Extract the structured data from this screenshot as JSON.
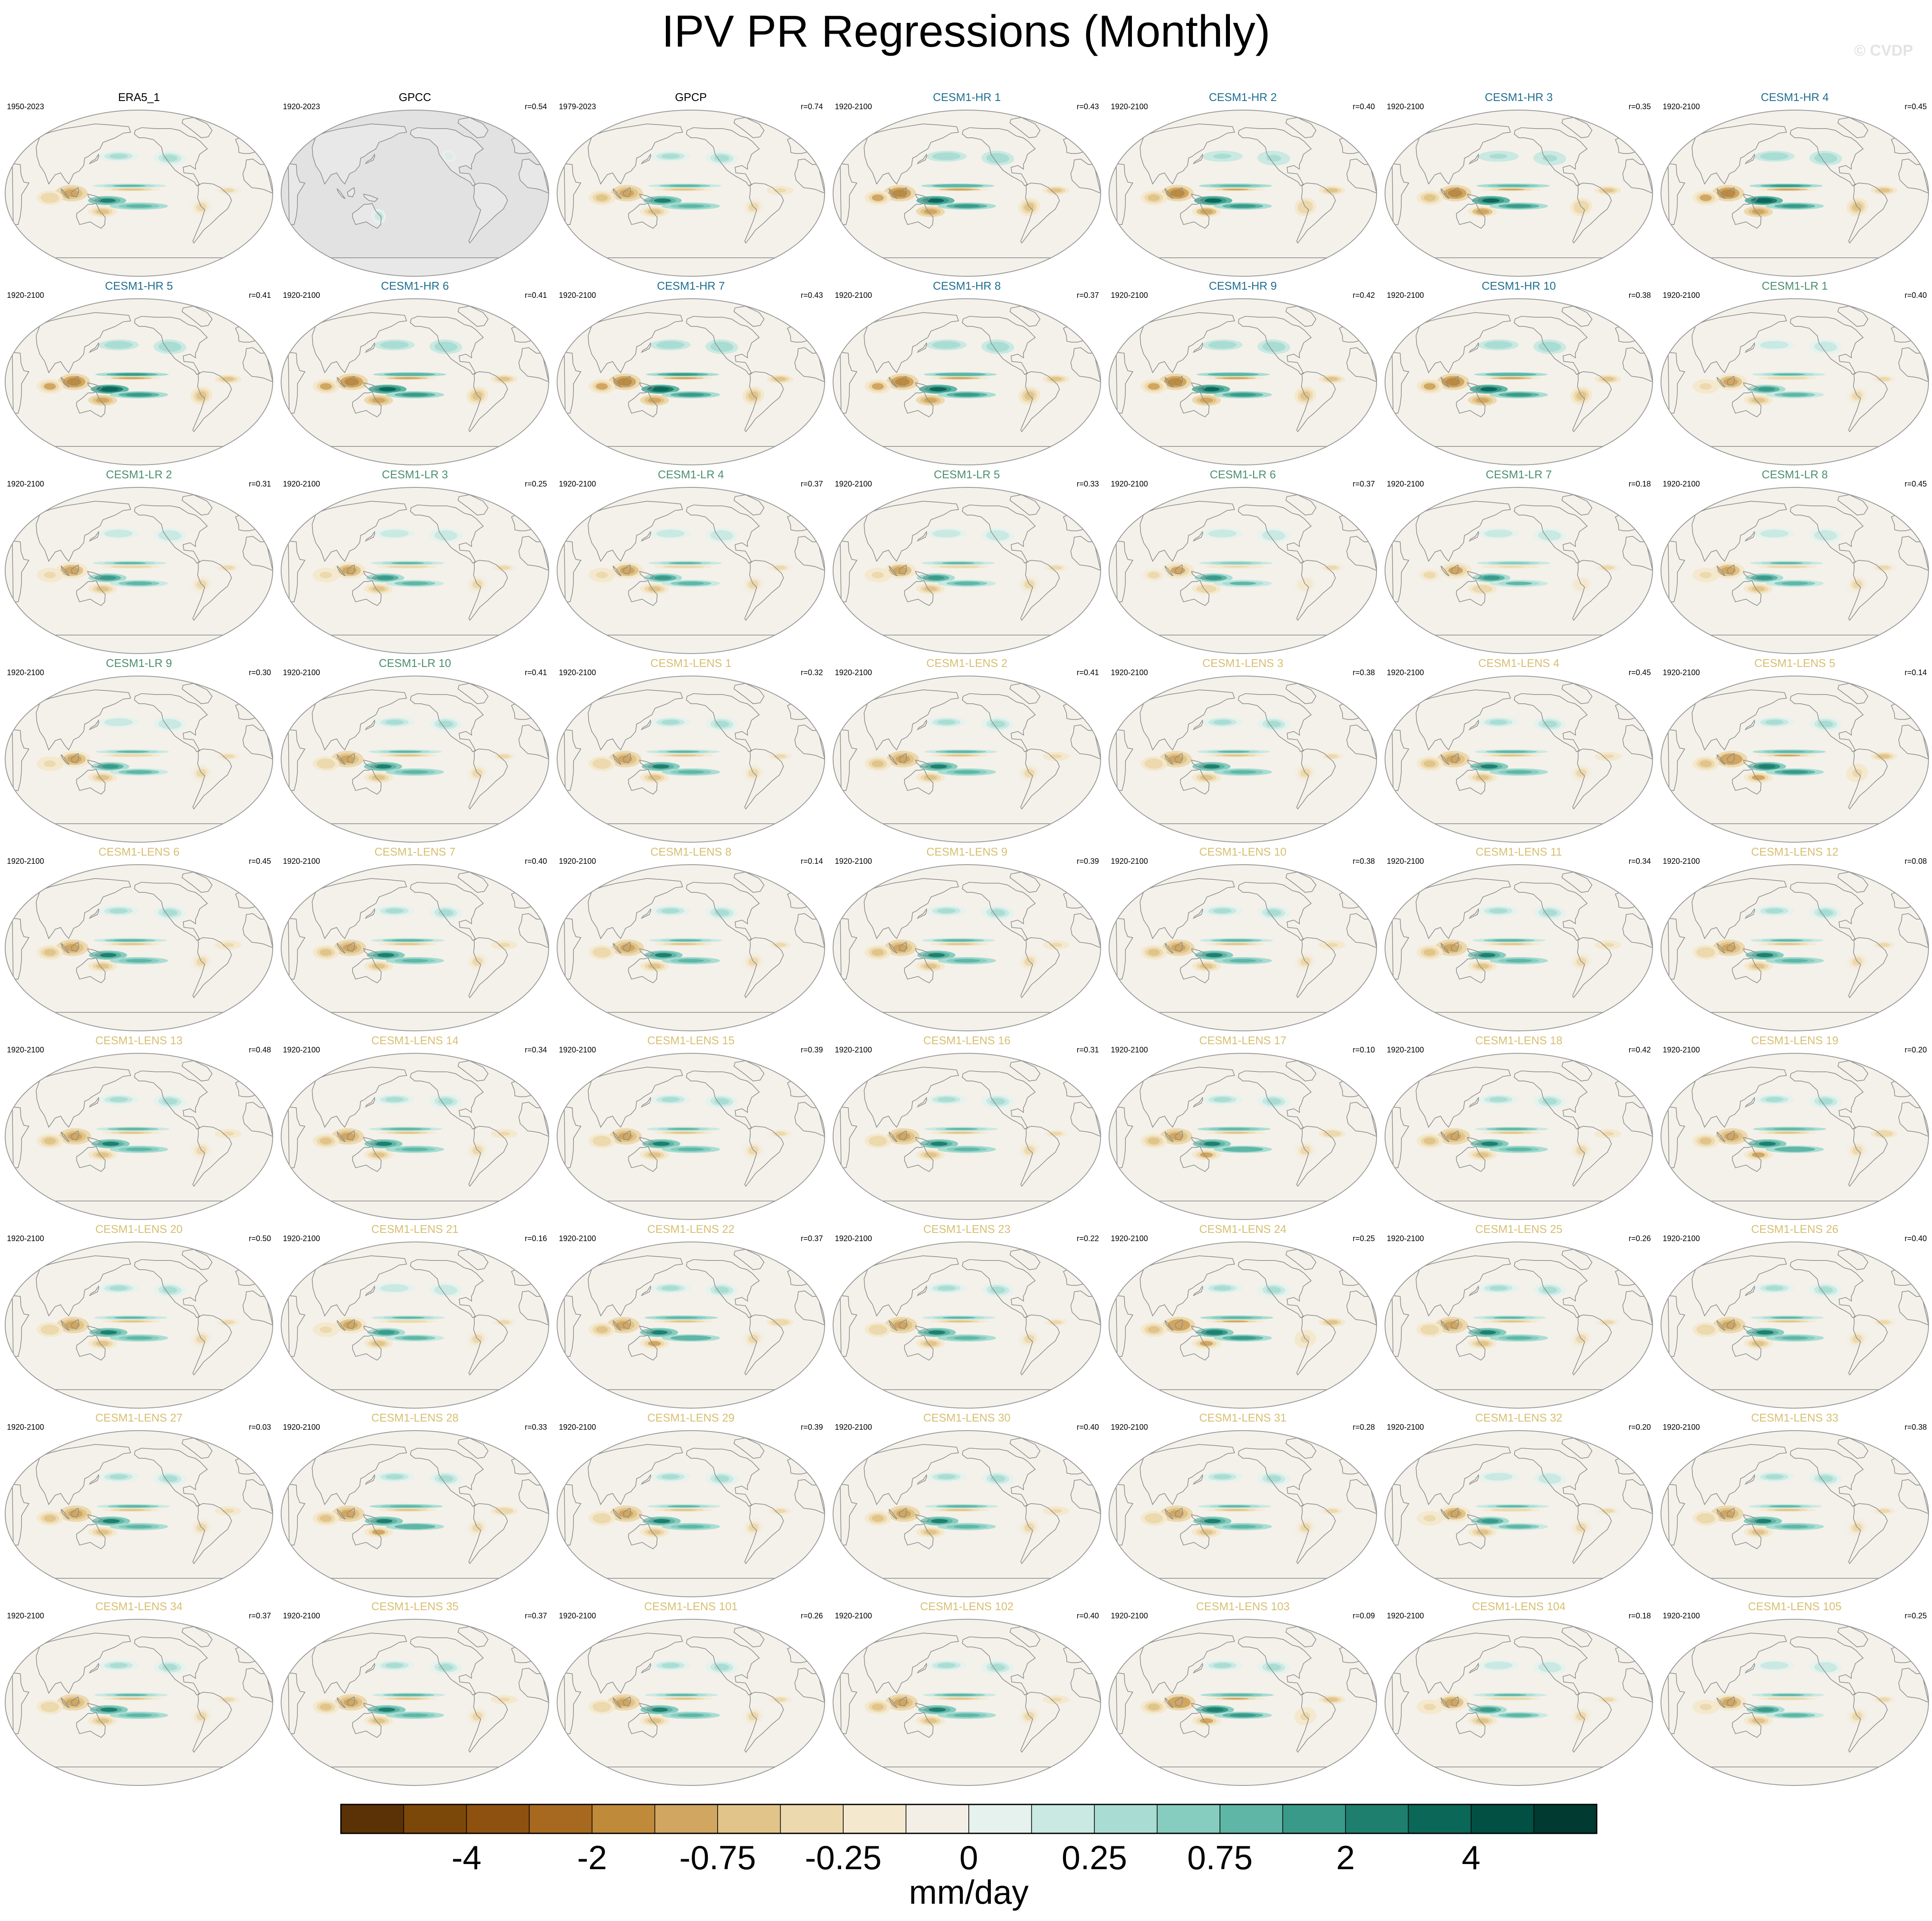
{
  "figure": {
    "title": "IPV PR Regressions (Monthly)",
    "watermark": "© CVDP"
  },
  "colors": {
    "group_obs": "#000000",
    "group_hr": "#1f6f8f",
    "group_lr": "#4d8f6f",
    "group_lens": "#d8bf72",
    "land_gray": "#e2e2e2",
    "coast": "#8c8c8c",
    "panel_base": "#f4f1ea"
  },
  "chart_data": {
    "type": "heatmap",
    "description_type": "small-multiple regression maps",
    "panels": [
      {
        "name": "ERA5_1",
        "period": "1950-2023",
        "r": "",
        "group": "obs",
        "amp": 0.8
      },
      {
        "name": "GPCC",
        "period": "1920-2023",
        "r": "r=0.54",
        "group": "obs",
        "amp": 0.2,
        "land_only": true
      },
      {
        "name": "GPCP",
        "period": "1979-2023",
        "r": "r=0.74",
        "group": "obs",
        "amp": 0.9
      },
      {
        "name": "CESM1-HR 1",
        "period": "1920-2100",
        "r": "r=0.43",
        "group": "hr",
        "amp": 1.3
      },
      {
        "name": "CESM1-HR 2",
        "period": "1920-2100",
        "r": "r=0.40",
        "group": "hr",
        "amp": 1.2
      },
      {
        "name": "CESM1-HR 3",
        "period": "1920-2100",
        "r": "r=0.35",
        "group": "hr",
        "amp": 1.2
      },
      {
        "name": "CESM1-HR 4",
        "period": "1920-2100",
        "r": "r=0.45",
        "group": "hr",
        "amp": 1.4
      },
      {
        "name": "CESM1-HR 5",
        "period": "1920-2100",
        "r": "r=0.41",
        "group": "hr",
        "amp": 1.4
      },
      {
        "name": "CESM1-HR 6",
        "period": "1920-2100",
        "r": "r=0.41",
        "group": "hr",
        "amp": 1.3
      },
      {
        "name": "CESM1-HR 7",
        "period": "1920-2100",
        "r": "r=0.43",
        "group": "hr",
        "amp": 1.4
      },
      {
        "name": "CESM1-HR 8",
        "period": "1920-2100",
        "r": "r=0.37",
        "group": "hr",
        "amp": 1.3
      },
      {
        "name": "CESM1-HR 9",
        "period": "1920-2100",
        "r": "r=0.42",
        "group": "hr",
        "amp": 1.3
      },
      {
        "name": "CESM1-HR 10",
        "period": "1920-2100",
        "r": "r=0.38",
        "group": "hr",
        "amp": 1.3
      },
      {
        "name": "CESM1-LR 1",
        "period": "1920-2100",
        "r": "r=0.40",
        "group": "lr",
        "amp": 0.7
      },
      {
        "name": "CESM1-LR 2",
        "period": "1920-2100",
        "r": "r=0.31",
        "group": "lr",
        "amp": 0.7
      },
      {
        "name": "CESM1-LR 3",
        "period": "1920-2100",
        "r": "r=0.25",
        "group": "lr",
        "amp": 0.7
      },
      {
        "name": "CESM1-LR 4",
        "period": "1920-2100",
        "r": "r=0.37",
        "group": "lr",
        "amp": 0.7
      },
      {
        "name": "CESM1-LR 5",
        "period": "1920-2100",
        "r": "r=0.33",
        "group": "lr",
        "amp": 0.7
      },
      {
        "name": "CESM1-LR 6",
        "period": "1920-2100",
        "r": "r=0.37",
        "group": "lr",
        "amp": 0.6
      },
      {
        "name": "CESM1-LR 7",
        "period": "1920-2100",
        "r": "r=0.18",
        "group": "lr",
        "amp": 0.6
      },
      {
        "name": "CESM1-LR 8",
        "period": "1920-2100",
        "r": "r=0.45",
        "group": "lr",
        "amp": 0.7
      },
      {
        "name": "CESM1-LR 9",
        "period": "1920-2100",
        "r": "r=0.30",
        "group": "lr",
        "amp": 0.7
      },
      {
        "name": "CESM1-LR 10",
        "period": "1920-2100",
        "r": "r=0.41",
        "group": "lr",
        "amp": 0.8
      },
      {
        "name": "CESM1-LENS 1",
        "period": "1920-2100",
        "r": "r=0.32",
        "group": "lens",
        "amp": 0.8
      },
      {
        "name": "CESM1-LENS 2",
        "period": "1920-2100",
        "r": "r=0.41",
        "group": "lens",
        "amp": 0.9
      },
      {
        "name": "CESM1-LENS 3",
        "period": "1920-2100",
        "r": "r=0.38",
        "group": "lens",
        "amp": 0.8
      },
      {
        "name": "CESM1-LENS 4",
        "period": "1920-2100",
        "r": "r=0.45",
        "group": "lens",
        "amp": 0.9
      },
      {
        "name": "CESM1-LENS 5",
        "period": "1920-2100",
        "r": "r=0.14",
        "group": "lens",
        "amp": 1.1
      },
      {
        "name": "CESM1-LENS 6",
        "period": "1920-2100",
        "r": "r=0.45",
        "group": "lens",
        "amp": 0.9
      },
      {
        "name": "CESM1-LENS 7",
        "period": "1920-2100",
        "r": "r=0.40",
        "group": "lens",
        "amp": 0.9
      },
      {
        "name": "CESM1-LENS 8",
        "period": "1920-2100",
        "r": "r=0.14",
        "group": "lens",
        "amp": 0.8
      },
      {
        "name": "CESM1-LENS 9",
        "period": "1920-2100",
        "r": "r=0.39",
        "group": "lens",
        "amp": 0.9
      },
      {
        "name": "CESM1-LENS 10",
        "period": "1920-2100",
        "r": "r=0.38",
        "group": "lens",
        "amp": 0.9
      },
      {
        "name": "CESM1-LENS 11",
        "period": "1920-2100",
        "r": "r=0.34",
        "group": "lens",
        "amp": 0.9
      },
      {
        "name": "CESM1-LENS 12",
        "period": "1920-2100",
        "r": "r=0.08",
        "group": "lens",
        "amp": 0.8
      },
      {
        "name": "CESM1-LENS 13",
        "period": "1920-2100",
        "r": "r=0.48",
        "group": "lens",
        "amp": 0.9
      },
      {
        "name": "CESM1-LENS 14",
        "period": "1920-2100",
        "r": "r=0.34",
        "group": "lens",
        "amp": 0.9
      },
      {
        "name": "CESM1-LENS 15",
        "period": "1920-2100",
        "r": "r=0.39",
        "group": "lens",
        "amp": 0.8
      },
      {
        "name": "CESM1-LENS 16",
        "period": "1920-2100",
        "r": "r=0.31",
        "group": "lens",
        "amp": 0.8
      },
      {
        "name": "CESM1-LENS 17",
        "period": "1920-2100",
        "r": "r=0.10",
        "group": "lens",
        "amp": 1.0
      },
      {
        "name": "CESM1-LENS 18",
        "period": "1920-2100",
        "r": "r=0.42",
        "group": "lens",
        "amp": 0.9
      },
      {
        "name": "CESM1-LENS 19",
        "period": "1920-2100",
        "r": "r=0.20",
        "group": "lens",
        "amp": 1.0
      },
      {
        "name": "CESM1-LENS 20",
        "period": "1920-2100",
        "r": "r=0.50",
        "group": "lens",
        "amp": 0.8
      },
      {
        "name": "CESM1-LENS 21",
        "period": "1920-2100",
        "r": "r=0.16",
        "group": "lens",
        "amp": 0.7
      },
      {
        "name": "CESM1-LENS 22",
        "period": "1920-2100",
        "r": "r=0.37",
        "group": "lens",
        "amp": 1.0
      },
      {
        "name": "CESM1-LENS 23",
        "period": "1920-2100",
        "r": "r=0.22",
        "group": "lens",
        "amp": 0.8
      },
      {
        "name": "CESM1-LENS 24",
        "period": "1920-2100",
        "r": "r=0.25",
        "group": "lens",
        "amp": 1.1
      },
      {
        "name": "CESM1-LENS 25",
        "period": "1920-2100",
        "r": "r=0.26",
        "group": "lens",
        "amp": 0.8
      },
      {
        "name": "CESM1-LENS 26",
        "period": "1920-2100",
        "r": "r=0.40",
        "group": "lens",
        "amp": 0.8
      },
      {
        "name": "CESM1-LENS 27",
        "period": "1920-2100",
        "r": "r=0.03",
        "group": "lens",
        "amp": 0.9
      },
      {
        "name": "CESM1-LENS 28",
        "period": "1920-2100",
        "r": "r=0.33",
        "group": "lens",
        "amp": 1.0
      },
      {
        "name": "CESM1-LENS 29",
        "period": "1920-2100",
        "r": "r=0.39",
        "group": "lens",
        "amp": 0.8
      },
      {
        "name": "CESM1-LENS 30",
        "period": "1920-2100",
        "r": "r=0.40",
        "group": "lens",
        "amp": 0.9
      },
      {
        "name": "CESM1-LENS 31",
        "period": "1920-2100",
        "r": "r=0.28",
        "group": "lens",
        "amp": 0.8
      },
      {
        "name": "CESM1-LENS 32",
        "period": "1920-2100",
        "r": "r=0.20",
        "group": "lens",
        "amp": 0.7
      },
      {
        "name": "CESM1-LENS 33",
        "period": "1920-2100",
        "r": "r=0.38",
        "group": "lens",
        "amp": 0.8
      },
      {
        "name": "CESM1-LENS 34",
        "period": "1920-2100",
        "r": "r=0.37",
        "group": "lens",
        "amp": 0.8
      },
      {
        "name": "CESM1-LENS 35",
        "period": "1920-2100",
        "r": "r=0.37",
        "group": "lens",
        "amp": 0.9
      },
      {
        "name": "CESM1-LENS 101",
        "period": "1920-2100",
        "r": "r=0.26",
        "group": "lens",
        "amp": 0.8
      },
      {
        "name": "CESM1-LENS 102",
        "period": "1920-2100",
        "r": "r=0.40",
        "group": "lens",
        "amp": 0.9
      },
      {
        "name": "CESM1-LENS 103",
        "period": "1920-2100",
        "r": "r=0.09",
        "group": "lens",
        "amp": 1.1
      },
      {
        "name": "CESM1-LENS 104",
        "period": "1920-2100",
        "r": "r=0.18",
        "group": "lens",
        "amp": 0.7
      },
      {
        "name": "CESM1-LENS 105",
        "period": "1920-2100",
        "r": "r=0.25",
        "group": "lens",
        "amp": 0.7
      }
    ],
    "colorbar": {
      "unit_label": "mm/day",
      "tick_labels": [
        "-4",
        "-2",
        "-0.75",
        "-0.25",
        "0",
        "0.25",
        "0.75",
        "2",
        "4"
      ],
      "colors": [
        "#5b3205",
        "#7c4809",
        "#8e510f",
        "#a7691f",
        "#bf8a3a",
        "#d1a660",
        "#e1c489",
        "#edd9ae",
        "#f4e9cf",
        "#f3efe7",
        "#e6f2ee",
        "#c9e9e2",
        "#a9ddd3",
        "#86cdbf",
        "#5fb6a6",
        "#3a9a8a",
        "#1e7f6f",
        "#0b6758",
        "#024f43",
        "#003a30"
      ]
    }
  }
}
